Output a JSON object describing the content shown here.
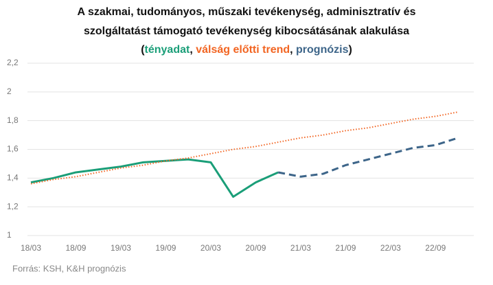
{
  "chart_data": {
    "type": "line",
    "title": [
      "A szakmai, tudományos, műszaki tevékenység, adminisztratív és",
      "szolgáltatást támogató tevékenység  kibocsátásának alakulása"
    ],
    "legend_punctuation": [
      "(",
      ", ",
      ", ",
      ")"
    ],
    "categories": [
      "18/03",
      null,
      "18/09",
      null,
      "19/03",
      null,
      "19/09",
      null,
      "20/03",
      null,
      "20/09",
      null,
      "21/03",
      null,
      "21/09",
      null,
      "22/03",
      null,
      "22/09",
      null
    ],
    "series": [
      {
        "name": "tényadat",
        "color": "#1a9e78",
        "style": "solid",
        "values": [
          1.37,
          1.4,
          1.44,
          1.46,
          1.48,
          1.51,
          1.52,
          1.53,
          1.51,
          1.27,
          1.37,
          1.44,
          null,
          null,
          null,
          null,
          null,
          null,
          null,
          null
        ]
      },
      {
        "name": "válság előtti trend",
        "color": "#f26522",
        "style": "dotted",
        "values": [
          1.36,
          1.39,
          1.41,
          1.44,
          1.47,
          1.49,
          1.52,
          1.54,
          1.57,
          1.6,
          1.62,
          1.65,
          1.68,
          1.7,
          1.73,
          1.75,
          1.78,
          1.81,
          1.83,
          1.86
        ]
      },
      {
        "name": "prognózis",
        "color": "#3d6589",
        "style": "dashed",
        "values": [
          null,
          null,
          null,
          null,
          null,
          null,
          null,
          null,
          null,
          null,
          null,
          1.44,
          1.41,
          1.43,
          1.49,
          1.53,
          1.57,
          1.61,
          1.63,
          1.68
        ]
      }
    ],
    "ylim": [
      1,
      2.2
    ],
    "yticks": [
      1,
      {
        "value": 1.2,
        "label": "1,2"
      },
      {
        "value": 1.4,
        "label": "1,4"
      },
      {
        "value": 1.6,
        "label": "1,6"
      },
      {
        "value": 1.8,
        "label": "1,8"
      },
      2,
      {
        "value": 2.2,
        "label": "2,2"
      }
    ],
    "grid": true,
    "source": "Forrás: KSH, K&H prognózis"
  }
}
